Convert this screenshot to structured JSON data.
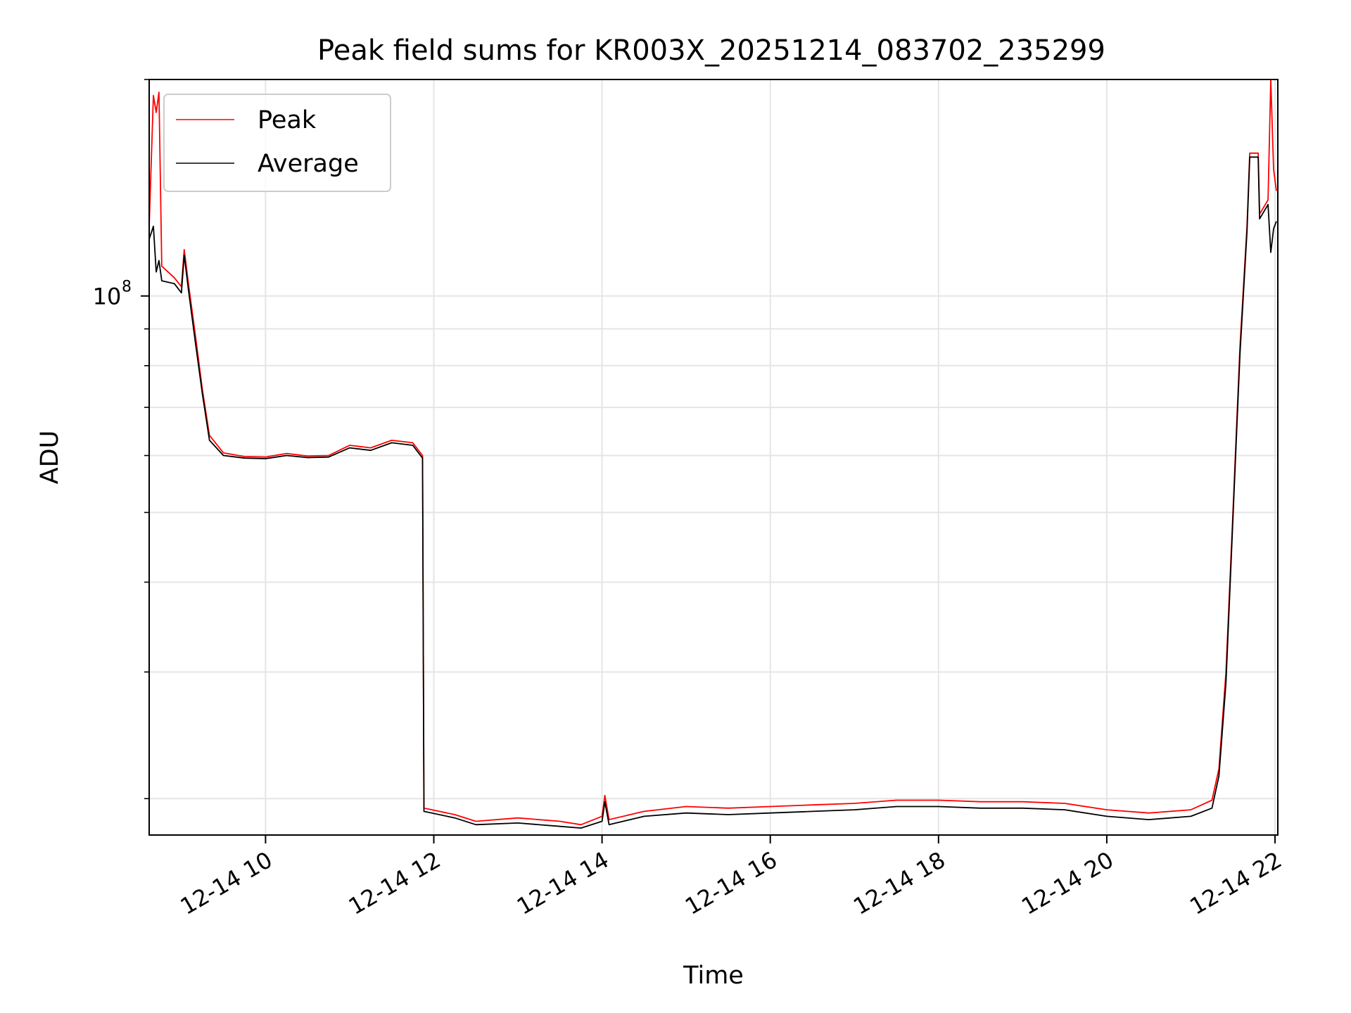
{
  "chart_data": {
    "type": "line",
    "title": "Peak field sums for KR003X_20251214_083702_235299",
    "xlabel": "Time",
    "ylabel": "ADU",
    "y_scale": "log",
    "ylim": [
      17800000,
      200000000
    ],
    "y_ticks": [
      {
        "value": 100000000,
        "base": "10",
        "exp": "8"
      }
    ],
    "y_minor_ticks": [
      20000000,
      30000000,
      40000000,
      50000000,
      60000000,
      70000000,
      80000000,
      90000000,
      200000000
    ],
    "xlim": [
      "2025-12-14 08:37",
      "2025-12-14 22:02"
    ],
    "x_ticks": [
      {
        "time": "2025-12-14 10:00",
        "label": "12-14 10"
      },
      {
        "time": "2025-12-14 12:00",
        "label": "12-14 12"
      },
      {
        "time": "2025-12-14 14:00",
        "label": "12-14 14"
      },
      {
        "time": "2025-12-14 16:00",
        "label": "12-14 16"
      },
      {
        "time": "2025-12-14 18:00",
        "label": "12-14 18"
      },
      {
        "time": "2025-12-14 20:00",
        "label": "12-14 20"
      },
      {
        "time": "2025-12-14 22:00",
        "label": "12-14 22"
      }
    ],
    "grid": true,
    "legend_position": "top-left",
    "series": [
      {
        "name": "Peak",
        "color": "#ff0000",
        "points": [
          [
            "2025-12-14 08:37",
            125000000
          ],
          [
            "2025-12-14 08:40",
            190000000
          ],
          [
            "2025-12-14 08:42",
            180000000
          ],
          [
            "2025-12-14 08:44",
            192000000
          ],
          [
            "2025-12-14 08:46",
            110000000
          ],
          [
            "2025-12-14 08:55",
            106000000
          ],
          [
            "2025-12-14 09:00",
            103000000
          ],
          [
            "2025-12-14 09:02",
            116000000
          ],
          [
            "2025-12-14 09:05",
            104000000
          ],
          [
            "2025-12-14 09:10",
            88000000
          ],
          [
            "2025-12-14 09:15",
            74000000
          ],
          [
            "2025-12-14 09:20",
            64000000
          ],
          [
            "2025-12-14 09:30",
            60500000
          ],
          [
            "2025-12-14 09:45",
            59800000
          ],
          [
            "2025-12-14 10:00",
            59700000
          ],
          [
            "2025-12-14 10:15",
            60400000
          ],
          [
            "2025-12-14 10:30",
            59900000
          ],
          [
            "2025-12-14 10:45",
            60000000
          ],
          [
            "2025-12-14 11:00",
            62000000
          ],
          [
            "2025-12-14 11:15",
            61500000
          ],
          [
            "2025-12-14 11:30",
            63000000
          ],
          [
            "2025-12-14 11:45",
            62500000
          ],
          [
            "2025-12-14 11:52",
            60000000
          ],
          [
            "2025-12-14 11:53",
            19400000
          ],
          [
            "2025-12-14 12:15",
            19000000
          ],
          [
            "2025-12-14 12:30",
            18600000
          ],
          [
            "2025-12-14 13:00",
            18800000
          ],
          [
            "2025-12-14 13:30",
            18600000
          ],
          [
            "2025-12-14 13:45",
            18400000
          ],
          [
            "2025-12-14 14:00",
            18900000
          ],
          [
            "2025-12-14 14:02",
            20200000
          ],
          [
            "2025-12-14 14:05",
            18700000
          ],
          [
            "2025-12-14 14:30",
            19200000
          ],
          [
            "2025-12-14 15:00",
            19500000
          ],
          [
            "2025-12-14 15:30",
            19400000
          ],
          [
            "2025-12-14 16:00",
            19500000
          ],
          [
            "2025-12-14 16:30",
            19600000
          ],
          [
            "2025-12-14 17:00",
            19700000
          ],
          [
            "2025-12-14 17:30",
            19900000
          ],
          [
            "2025-12-14 18:00",
            19900000
          ],
          [
            "2025-12-14 18:30",
            19800000
          ],
          [
            "2025-12-14 19:00",
            19800000
          ],
          [
            "2025-12-14 19:30",
            19700000
          ],
          [
            "2025-12-14 20:00",
            19300000
          ],
          [
            "2025-12-14 20:30",
            19100000
          ],
          [
            "2025-12-14 21:00",
            19300000
          ],
          [
            "2025-12-14 21:15",
            19900000
          ],
          [
            "2025-12-14 21:20",
            22000000
          ],
          [
            "2025-12-14 21:25",
            30000000
          ],
          [
            "2025-12-14 21:30",
            50000000
          ],
          [
            "2025-12-14 21:35",
            85000000
          ],
          [
            "2025-12-14 21:40",
            125000000
          ],
          [
            "2025-12-14 21:42",
            158000000
          ],
          [
            "2025-12-14 21:48",
            158000000
          ],
          [
            "2025-12-14 21:49",
            130000000
          ],
          [
            "2025-12-14 21:55",
            136000000
          ],
          [
            "2025-12-14 21:57",
            200000000
          ],
          [
            "2025-12-14 21:59",
            150000000
          ],
          [
            "2025-12-14 22:01",
            140000000
          ]
        ]
      },
      {
        "name": "Average",
        "color": "#000000",
        "points": [
          [
            "2025-12-14 08:37",
            120000000
          ],
          [
            "2025-12-14 08:40",
            125000000
          ],
          [
            "2025-12-14 08:42",
            108000000
          ],
          [
            "2025-12-14 08:44",
            112000000
          ],
          [
            "2025-12-14 08:46",
            105000000
          ],
          [
            "2025-12-14 08:55",
            104000000
          ],
          [
            "2025-12-14 09:00",
            101000000
          ],
          [
            "2025-12-14 09:02",
            114000000
          ],
          [
            "2025-12-14 09:05",
            102000000
          ],
          [
            "2025-12-14 09:10",
            86000000
          ],
          [
            "2025-12-14 09:15",
            73000000
          ],
          [
            "2025-12-14 09:20",
            63000000
          ],
          [
            "2025-12-14 09:30",
            60000000
          ],
          [
            "2025-12-14 09:45",
            59500000
          ],
          [
            "2025-12-14 10:00",
            59400000
          ],
          [
            "2025-12-14 10:15",
            60000000
          ],
          [
            "2025-12-14 10:30",
            59600000
          ],
          [
            "2025-12-14 10:45",
            59700000
          ],
          [
            "2025-12-14 11:00",
            61500000
          ],
          [
            "2025-12-14 11:15",
            61000000
          ],
          [
            "2025-12-14 11:30",
            62500000
          ],
          [
            "2025-12-14 11:45",
            62000000
          ],
          [
            "2025-12-14 11:52",
            59500000
          ],
          [
            "2025-12-14 11:53",
            19200000
          ],
          [
            "2025-12-14 12:15",
            18800000
          ],
          [
            "2025-12-14 12:30",
            18400000
          ],
          [
            "2025-12-14 13:00",
            18500000
          ],
          [
            "2025-12-14 13:30",
            18300000
          ],
          [
            "2025-12-14 13:45",
            18200000
          ],
          [
            "2025-12-14 14:00",
            18600000
          ],
          [
            "2025-12-14 14:02",
            19800000
          ],
          [
            "2025-12-14 14:05",
            18400000
          ],
          [
            "2025-12-14 14:30",
            18900000
          ],
          [
            "2025-12-14 15:00",
            19100000
          ],
          [
            "2025-12-14 15:30",
            19000000
          ],
          [
            "2025-12-14 16:00",
            19100000
          ],
          [
            "2025-12-14 16:30",
            19200000
          ],
          [
            "2025-12-14 17:00",
            19300000
          ],
          [
            "2025-12-14 17:30",
            19500000
          ],
          [
            "2025-12-14 18:00",
            19500000
          ],
          [
            "2025-12-14 18:30",
            19400000
          ],
          [
            "2025-12-14 19:00",
            19400000
          ],
          [
            "2025-12-14 19:30",
            19300000
          ],
          [
            "2025-12-14 20:00",
            18900000
          ],
          [
            "2025-12-14 20:30",
            18700000
          ],
          [
            "2025-12-14 21:00",
            18900000
          ],
          [
            "2025-12-14 21:15",
            19400000
          ],
          [
            "2025-12-14 21:20",
            21500000
          ],
          [
            "2025-12-14 21:25",
            29000000
          ],
          [
            "2025-12-14 21:30",
            49000000
          ],
          [
            "2025-12-14 21:35",
            83000000
          ],
          [
            "2025-12-14 21:40",
            123000000
          ],
          [
            "2025-12-14 21:42",
            156000000
          ],
          [
            "2025-12-14 21:48",
            156000000
          ],
          [
            "2025-12-14 21:49",
            128000000
          ],
          [
            "2025-12-14 21:55",
            134000000
          ],
          [
            "2025-12-14 21:57",
            115000000
          ],
          [
            "2025-12-14 21:59",
            124000000
          ],
          [
            "2025-12-14 22:01",
            127000000
          ]
        ]
      }
    ]
  }
}
